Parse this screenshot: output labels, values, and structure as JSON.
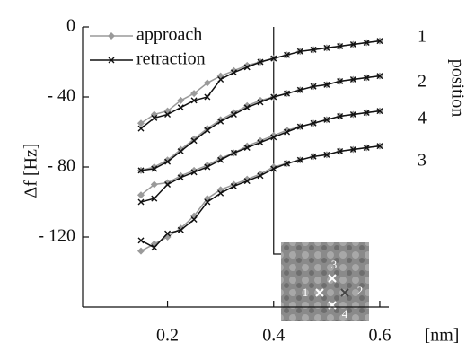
{
  "chart_data": {
    "type": "line",
    "y_label": "Δf [Hz]",
    "x_label": "[nm]",
    "position_title": "position",
    "positions": [
      "1",
      "2",
      "4",
      "3"
    ],
    "x": [
      0.15,
      0.175,
      0.2,
      0.225,
      0.25,
      0.275,
      0.3,
      0.325,
      0.35,
      0.375,
      0.4,
      0.425,
      0.45,
      0.475,
      0.5,
      0.525,
      0.55,
      0.575,
      0.6
    ],
    "series": [
      {
        "name": "approach",
        "color": "#9a9a9a",
        "marker": "diamond",
        "values": [
          [
            -55,
            -50,
            -48,
            -42,
            -38,
            -32,
            -28,
            -25,
            -22,
            -20,
            -18,
            -16,
            -14,
            -13,
            -12,
            -11,
            -10,
            -9,
            -8
          ],
          [
            -82,
            -80,
            -76,
            -70,
            -64,
            -58,
            -53,
            -49,
            -45,
            -42,
            -40,
            -38,
            -36,
            -34,
            -33,
            -31,
            -30,
            -29,
            -28
          ],
          [
            -96,
            -90,
            -89,
            -85,
            -82,
            -79,
            -75,
            -72,
            -68,
            -65,
            -62,
            -59,
            -57,
            -55,
            -53,
            -51,
            -50,
            -49,
            -48
          ],
          [
            -128,
            -124,
            -120,
            -115,
            -108,
            -98,
            -93,
            -90,
            -87,
            -84,
            -80,
            -78,
            -76,
            -74,
            -73,
            -71,
            -70,
            -69,
            -68
          ]
        ]
      },
      {
        "name": "retraction",
        "color": "#111111",
        "marker": "x",
        "values": [
          [
            -58,
            -52,
            -50,
            -46,
            -42,
            -40,
            -30,
            -26,
            -23,
            -20,
            -18,
            -16,
            -14,
            -13,
            -12,
            -11,
            -10,
            -9,
            -8
          ],
          [
            -82,
            -81,
            -77,
            -71,
            -65,
            -59,
            -54,
            -50,
            -46,
            -43,
            -40,
            -38,
            -36,
            -34,
            -33,
            -31,
            -30,
            -29,
            -28
          ],
          [
            -100,
            -98,
            -90,
            -86,
            -83,
            -80,
            -76,
            -72,
            -69,
            -66,
            -63,
            -60,
            -57,
            -55,
            -53,
            -51,
            -50,
            -49,
            -48
          ],
          [
            -122,
            -126,
            -118,
            -116,
            -110,
            -100,
            -95,
            -91,
            -88,
            -85,
            -81,
            -78,
            -76,
            -74,
            -73,
            -71,
            -70,
            -69,
            -68
          ]
        ]
      }
    ],
    "xlim": [
      0.04,
      0.617
    ],
    "ylim": [
      -160,
      0
    ],
    "xticks": [
      0.2,
      0.4,
      0.6
    ],
    "yticks": [
      0,
      {
        "value": -40,
        "label": "- 40"
      },
      {
        "value": -80,
        "label": "- 80"
      },
      {
        "value": -120,
        "label": "- 120"
      }
    ],
    "marker_x": 0.4,
    "legend": "upper left",
    "inset": {
      "labels": [
        "1",
        "2",
        "3",
        "4"
      ]
    }
  }
}
